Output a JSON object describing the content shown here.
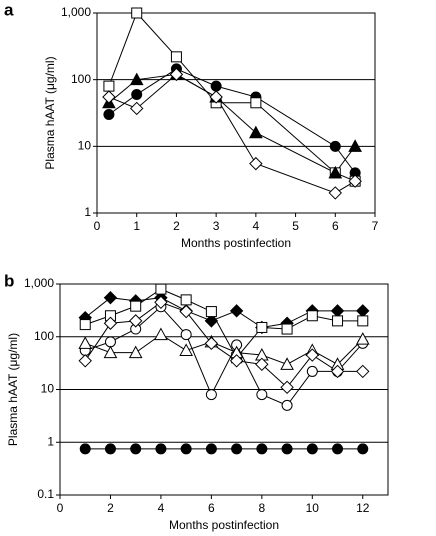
{
  "chart_data": [
    {
      "type": "line",
      "panel_label": "a",
      "y_label": "Plasma hAAT (μg/ml)",
      "x_label": "Months postinfection",
      "x": [
        0.3,
        1,
        2,
        3,
        4,
        6,
        6.5
      ],
      "xlim": [
        0,
        7
      ],
      "xticks": [
        0,
        1,
        2,
        3,
        4,
        5,
        6,
        7
      ],
      "ylim": [
        1,
        1000
      ],
      "yticks": [
        1,
        10,
        100,
        {
          "value": 1000,
          "label": "1,000"
        }
      ],
      "y_scale": "log",
      "grid_lines": [
        10,
        100
      ],
      "series": [
        {
          "marker": "circle",
          "filled": true,
          "color": "#000000",
          "values": [
            30,
            60,
            145,
            80,
            55,
            10,
            4
          ]
        },
        {
          "marker": "square",
          "filled": false,
          "color": "#000000",
          "values": [
            80,
            1000,
            220,
            45,
            45,
            4,
            3
          ]
        },
        {
          "marker": "triangle",
          "filled": true,
          "color": "#000000",
          "values": [
            45,
            100,
            120,
            55,
            16,
            4,
            10
          ]
        },
        {
          "marker": "diamond",
          "filled": false,
          "color": "#000000",
          "values": [
            55,
            37,
            120,
            55,
            5.5,
            2,
            3
          ]
        }
      ]
    },
    {
      "type": "line",
      "panel_label": "b",
      "y_label": "Plasma hAAT (μg/ml)",
      "x_label": "Months postinfection",
      "x": [
        1,
        2,
        3,
        4,
        5,
        6,
        7,
        8,
        9,
        10,
        11,
        12
      ],
      "xlim": [
        0,
        13
      ],
      "xticks": [
        0,
        2,
        4,
        6,
        8,
        10,
        12
      ],
      "ylim": [
        0.1,
        1000
      ],
      "yticks": [
        0.1,
        1,
        10,
        100,
        {
          "value": 1000,
          "label": "1,000"
        }
      ],
      "y_scale": "log",
      "grid_lines": [
        1,
        10,
        100
      ],
      "series": [
        {
          "marker": "diamond",
          "filled": true,
          "color": "#000000",
          "values": [
            230,
            550,
            480,
            550,
            310,
            200,
            310,
            150,
            180,
            310,
            310,
            310
          ]
        },
        {
          "marker": "square",
          "filled": false,
          "color": "#000000",
          "values": [
            170,
            250,
            380,
            800,
            500,
            300,
            40,
            150,
            140,
            250,
            200,
            200
          ]
        },
        {
          "marker": "circle",
          "filled": false,
          "color": "#000000",
          "values": [
            55,
            80,
            140,
            370,
            110,
            8,
            70,
            8,
            5,
            22,
            22,
            75
          ]
        },
        {
          "marker": "triangle",
          "filled": false,
          "color": "#000000",
          "values": [
            75,
            50,
            50,
            110,
            55,
            80,
            50,
            45,
            30,
            55,
            30,
            90
          ]
        },
        {
          "marker": "diamond",
          "filled": false,
          "color": "#000000",
          "values": [
            35,
            180,
            200,
            450,
            300,
            75,
            35,
            30,
            11,
            45,
            22,
            22
          ]
        },
        {
          "marker": "circle",
          "filled": true,
          "color": "#000000",
          "values": [
            0.75,
            0.75,
            0.75,
            0.75,
            0.75,
            0.75,
            0.75,
            0.75,
            0.75,
            0.75,
            0.75,
            0.75
          ]
        }
      ]
    }
  ]
}
